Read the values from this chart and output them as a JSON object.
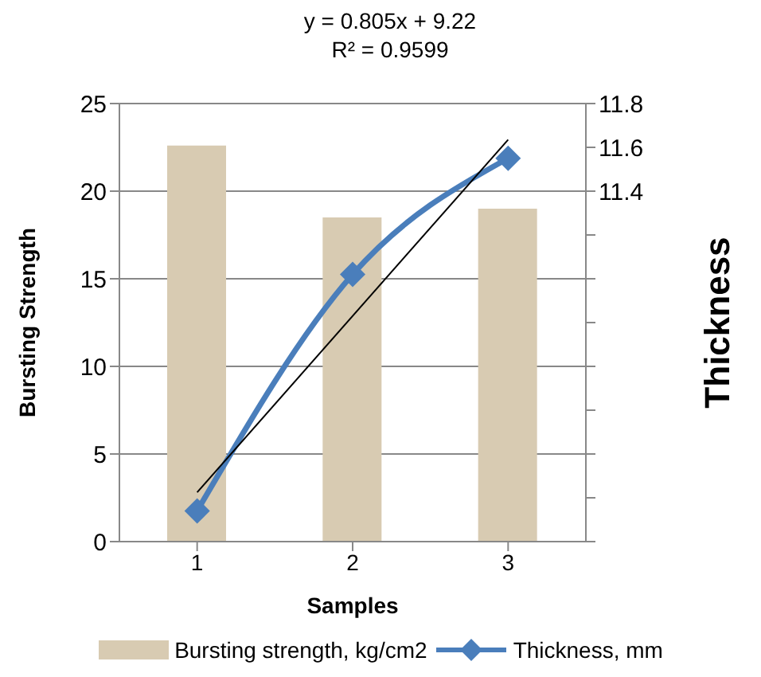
{
  "chart_data": {
    "type": "bar",
    "annotations": [
      "y = 0.805x + 9.22",
      "R² = 0.9599"
    ],
    "xlabel": "Samples",
    "ylabel": "Bursting Strength",
    "y2label": "Thickness",
    "categories": [
      "1",
      "2",
      "3"
    ],
    "series": [
      {
        "name": "Bursting strength, kg/cm2",
        "color": "#d8cbb2",
        "values": [
          22.6,
          18.5,
          19.0
        ]
      },
      {
        "name": "Thickness, mm",
        "type": "line",
        "axis": "y2",
        "color": "#4a7ebb",
        "marker": "diamond",
        "values": [
          9.94,
          11.02,
          11.55
        ]
      },
      {
        "type": "line",
        "axis": "y2",
        "color": "#000000",
        "marker": "none",
        "x": [
          "1",
          "3"
        ],
        "values": [
          10.025,
          11.635
        ]
      }
    ],
    "ylim": [
      0,
      25
    ],
    "yticks": [
      0,
      5,
      10,
      15,
      20,
      25
    ],
    "y2lim": [
      9.8,
      11.8
    ],
    "y2ticks": [
      {
        "value": 9.8,
        "label": null
      },
      {
        "value": 10,
        "label": null
      },
      {
        "value": 10.2,
        "label": null
      },
      {
        "value": 10.4,
        "label": null
      },
      {
        "value": 10.6,
        "label": null
      },
      {
        "value": 10.8,
        "label": null
      },
      {
        "value": 11,
        "label": null
      },
      {
        "value": 11.2,
        "label": null
      },
      11.4,
      11.6,
      11.8
    ],
    "grid": "y",
    "legend": "bottom"
  }
}
